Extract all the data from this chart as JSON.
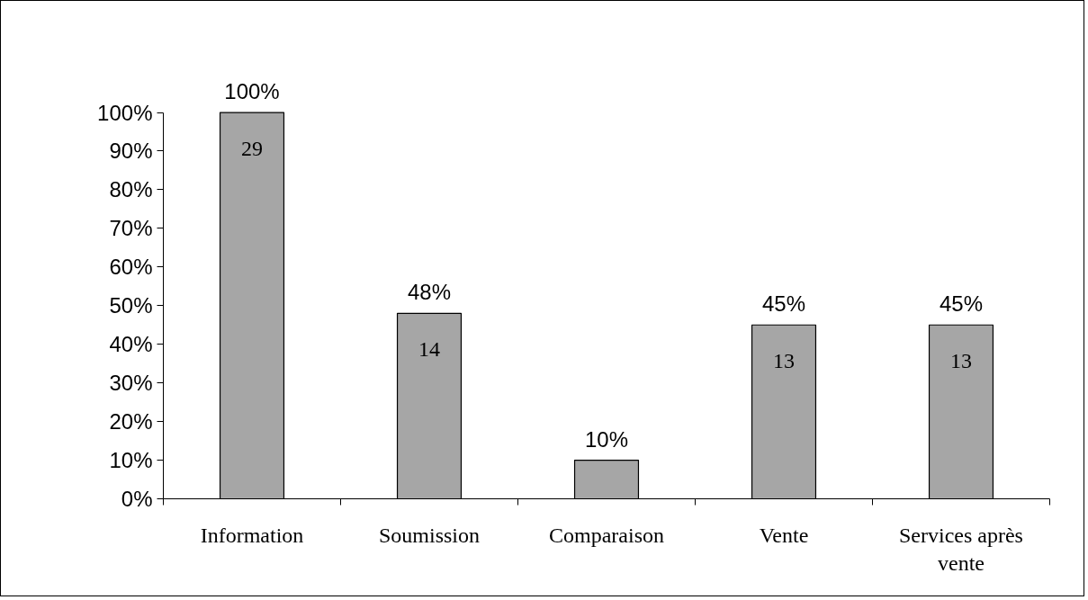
{
  "chart_data": {
    "type": "bar",
    "categories": [
      "Information",
      "Soumission",
      "Comparaison",
      "Vente",
      "Services après vente"
    ],
    "values": [
      100,
      48,
      10,
      45,
      45
    ],
    "value_labels": [
      "100%",
      "48%",
      "10%",
      "45%",
      "45%"
    ],
    "color": "#a6a6a6",
    "ylim": [
      0,
      100
    ],
    "yticks": [
      {
        "value": 0,
        "label": "0%"
      },
      {
        "value": 10,
        "label": "10%"
      },
      {
        "value": 20,
        "label": "20%"
      },
      {
        "value": 30,
        "label": "30%"
      },
      {
        "value": 40,
        "label": "40%"
      },
      {
        "value": 50,
        "label": "50%"
      },
      {
        "value": 60,
        "label": "60%"
      },
      {
        "value": 70,
        "label": "70%"
      },
      {
        "value": 80,
        "label": "80%"
      },
      {
        "value": 90,
        "label": "90%"
      },
      {
        "value": 100,
        "label": "100%"
      }
    ],
    "annotations": [
      "29",
      "14",
      "13",
      "13"
    ],
    "grid": false
  }
}
